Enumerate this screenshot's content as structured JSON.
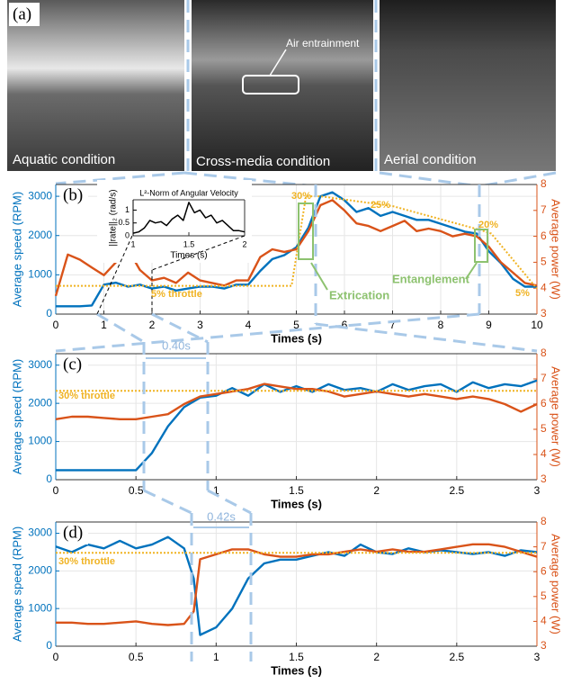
{
  "photos": {
    "label": "(a)",
    "items": [
      {
        "caption": "Aquatic condition"
      },
      {
        "caption": "Cross-media condition",
        "note": "Air entrainment"
      },
      {
        "caption": "Aerial condition"
      }
    ]
  },
  "chart_data": [
    {
      "type": "line",
      "label": "(b)",
      "xlabel": "Times (s)",
      "ylabel": "Average speed (RPM)",
      "y2label": "Average power (W)",
      "xlim": [
        0,
        10
      ],
      "xticks": [
        0,
        1,
        2,
        3,
        4,
        5,
        6,
        7,
        8,
        9,
        10
      ],
      "ylim": [
        0,
        3300
      ],
      "yticks": [
        0,
        1000,
        2000,
        3000
      ],
      "y2lim": [
        3,
        8
      ],
      "y2ticks": [
        3,
        4,
        5,
        6,
        7,
        8
      ],
      "grid": true,
      "axis_colors": {
        "y": "#0072bd",
        "y2": "#d95319"
      },
      "annotations": [
        "30%",
        "25%",
        "20%",
        "5%",
        "5% throttle",
        "Extrication",
        "Entanglement"
      ],
      "series": [
        {
          "color": "#0072bd",
          "x": [
            0,
            0.25,
            0.5,
            0.75,
            1,
            1.25,
            1.5,
            1.75,
            2,
            2.25,
            2.5,
            2.75,
            3,
            3.25,
            3.5,
            3.75,
            4,
            4.25,
            4.5,
            4.75,
            5,
            5.25,
            5.5,
            5.75,
            6,
            6.25,
            6.5,
            6.75,
            7,
            7.25,
            7.5,
            7.75,
            8,
            8.25,
            8.5,
            8.75,
            9,
            9.25,
            9.5,
            9.75,
            10
          ],
          "values": [
            200,
            200,
            200,
            220,
            750,
            800,
            700,
            750,
            650,
            700,
            600,
            650,
            700,
            700,
            650,
            750,
            750,
            1100,
            1400,
            1500,
            1700,
            2200,
            3000,
            3100,
            2900,
            2600,
            2700,
            2500,
            2600,
            2500,
            2400,
            2400,
            2300,
            2200,
            2100,
            2050,
            1600,
            1300,
            900,
            700,
            700
          ]
        },
        {
          "color": "#d95319",
          "axis": "y2",
          "x": [
            0,
            0.25,
            0.5,
            0.75,
            1,
            1.25,
            1.5,
            1.75,
            2,
            2.25,
            2.5,
            2.75,
            3,
            3.25,
            3.5,
            3.75,
            4,
            4.25,
            4.5,
            4.75,
            5,
            5.25,
            5.5,
            5.75,
            6,
            6.25,
            6.5,
            6.75,
            7,
            7.25,
            7.5,
            7.75,
            8,
            8.25,
            8.5,
            8.75,
            9,
            9.25,
            9.5,
            9.75,
            10
          ],
          "values": [
            3.7,
            5.3,
            5.1,
            4.8,
            4.5,
            5.0,
            5.5,
            4.7,
            4.3,
            4.4,
            4.2,
            4.6,
            4.3,
            4.2,
            4.1,
            4.3,
            4.3,
            5.2,
            5.5,
            5.4,
            5.5,
            6.2,
            7.2,
            7.4,
            7.0,
            6.5,
            6.4,
            6.2,
            6.4,
            6.6,
            6.2,
            6.3,
            6.2,
            6.0,
            6.1,
            6.0,
            5.6,
            5.0,
            4.6,
            4.2,
            4.1
          ]
        },
        {
          "color": "#f0b323",
          "style": "dotted",
          "x": [
            0,
            4.9,
            5.2,
            5.5,
            7,
            8.8,
            9.05,
            10
          ],
          "values": [
            720,
            720,
            3000,
            3000,
            2750,
            2150,
            2050,
            650
          ]
        }
      ],
      "inset": {
        "type": "line",
        "title": "L²-Norm of Angular Velocity",
        "xlabel": "Times (s)",
        "ylabel": "||rate||₂ (rad/s)",
        "xlim": [
          1,
          2
        ],
        "xticks": [
          1,
          1.5,
          2
        ],
        "ylim": [
          0,
          1.4
        ],
        "yticks": [
          0,
          0.5,
          1
        ],
        "series": [
          {
            "color": "#000000",
            "x": [
              1,
              1.05,
              1.1,
              1.15,
              1.2,
              1.25,
              1.3,
              1.35,
              1.4,
              1.45,
              1.5,
              1.55,
              1.6,
              1.65,
              1.7,
              1.75,
              1.8,
              1.85,
              1.9,
              1.95,
              2
            ],
            "values": [
              0.1,
              0.15,
              0.3,
              0.6,
              0.5,
              0.55,
              0.4,
              0.65,
              0.8,
              0.6,
              1.3,
              0.9,
              1.0,
              0.7,
              0.8,
              0.5,
              0.6,
              0.4,
              0.2,
              0.2,
              0.15
            ]
          }
        ]
      }
    },
    {
      "type": "line",
      "label": "(c)",
      "xlabel": "Times (s)",
      "ylabel": "Average speed (RPM)",
      "y2label": "Average power (W)",
      "xlim": [
        0,
        3
      ],
      "xticks": [
        0,
        0.5,
        1,
        1.5,
        2,
        2.5,
        3
      ],
      "ylim": [
        0,
        3300
      ],
      "yticks": [
        0,
        1000,
        2000,
        3000
      ],
      "y2lim": [
        3,
        8
      ],
      "y2ticks": [
        3,
        4,
        5,
        6,
        7,
        8
      ],
      "grid": true,
      "axis_colors": {
        "y": "#0072bd",
        "y2": "#d95319"
      },
      "annotations": [
        "30% throttle",
        "0.40s"
      ],
      "series": [
        {
          "color": "#0072bd",
          "x": [
            0,
            0.1,
            0.2,
            0.3,
            0.4,
            0.5,
            0.6,
            0.7,
            0.8,
            0.9,
            1,
            1.1,
            1.2,
            1.3,
            1.4,
            1.5,
            1.6,
            1.7,
            1.8,
            1.9,
            2,
            2.1,
            2.2,
            2.3,
            2.4,
            2.5,
            2.6,
            2.7,
            2.8,
            2.9,
            3
          ],
          "values": [
            250,
            250,
            250,
            250,
            250,
            250,
            700,
            1400,
            1900,
            2150,
            2200,
            2400,
            2200,
            2500,
            2300,
            2450,
            2300,
            2500,
            2350,
            2400,
            2300,
            2500,
            2350,
            2450,
            2500,
            2300,
            2550,
            2400,
            2500,
            2450,
            2600
          ]
        },
        {
          "color": "#d95319",
          "axis": "y2",
          "x": [
            0,
            0.1,
            0.2,
            0.3,
            0.4,
            0.5,
            0.6,
            0.7,
            0.8,
            0.9,
            1,
            1.1,
            1.2,
            1.3,
            1.4,
            1.5,
            1.6,
            1.7,
            1.8,
            1.9,
            2,
            2.1,
            2.2,
            2.3,
            2.4,
            2.5,
            2.6,
            2.7,
            2.8,
            2.9,
            3
          ],
          "values": [
            5.4,
            5.5,
            5.5,
            5.45,
            5.4,
            5.4,
            5.5,
            5.6,
            6.0,
            6.3,
            6.4,
            6.5,
            6.6,
            6.8,
            6.7,
            6.6,
            6.6,
            6.5,
            6.3,
            6.4,
            6.5,
            6.4,
            6.3,
            6.4,
            6.3,
            6.2,
            6.3,
            6.2,
            6.0,
            5.7,
            6.0
          ]
        },
        {
          "color": "#f0b323",
          "style": "dotted",
          "x": [
            0,
            3
          ],
          "values": [
            2330,
            2330
          ]
        }
      ]
    },
    {
      "type": "line",
      "label": "(d)",
      "xlabel": "Times (s)",
      "ylabel": "Average speed (RPM)",
      "y2label": "Average power (W)",
      "xlim": [
        0,
        3
      ],
      "xticks": [
        0,
        0.5,
        1,
        1.5,
        2,
        2.5,
        3
      ],
      "ylim": [
        0,
        3300
      ],
      "yticks": [
        0,
        1000,
        2000,
        3000
      ],
      "y2lim": [
        3,
        8
      ],
      "y2ticks": [
        3,
        4,
        5,
        6,
        7,
        8
      ],
      "grid": true,
      "axis_colors": {
        "y": "#0072bd",
        "y2": "#d95319"
      },
      "annotations": [
        "30% throttle",
        "0.42s"
      ],
      "series": [
        {
          "color": "#0072bd",
          "x": [
            0,
            0.1,
            0.2,
            0.3,
            0.4,
            0.5,
            0.6,
            0.7,
            0.8,
            0.86,
            0.9,
            1,
            1.1,
            1.2,
            1.3,
            1.4,
            1.5,
            1.6,
            1.7,
            1.8,
            1.9,
            2,
            2.1,
            2.2,
            2.3,
            2.4,
            2.5,
            2.6,
            2.7,
            2.8,
            2.9,
            3
          ],
          "values": [
            2650,
            2500,
            2700,
            2600,
            2800,
            2600,
            2700,
            2900,
            2600,
            1800,
            300,
            500,
            1000,
            1800,
            2200,
            2300,
            2300,
            2400,
            2500,
            2400,
            2700,
            2500,
            2450,
            2600,
            2500,
            2550,
            2500,
            2450,
            2500,
            2400,
            2550,
            2500
          ]
        },
        {
          "color": "#d95319",
          "axis": "y2",
          "x": [
            0,
            0.1,
            0.2,
            0.3,
            0.4,
            0.5,
            0.6,
            0.7,
            0.8,
            0.86,
            0.9,
            1,
            1.1,
            1.2,
            1.3,
            1.4,
            1.5,
            1.6,
            1.7,
            1.8,
            1.9,
            2,
            2.1,
            2.2,
            2.3,
            2.4,
            2.5,
            2.6,
            2.7,
            2.8,
            2.9,
            3
          ],
          "values": [
            3.95,
            3.95,
            3.9,
            3.9,
            3.95,
            4.0,
            3.9,
            3.85,
            3.9,
            4.4,
            6.5,
            6.7,
            6.9,
            6.9,
            6.7,
            6.6,
            6.6,
            6.7,
            6.7,
            6.8,
            6.9,
            6.8,
            6.9,
            6.8,
            6.8,
            6.9,
            7.0,
            7.1,
            7.1,
            7.0,
            6.8,
            6.6
          ]
        },
        {
          "color": "#f0b323",
          "style": "dotted",
          "x": [
            0,
            3
          ],
          "values": [
            2480,
            2480
          ]
        }
      ]
    }
  ]
}
